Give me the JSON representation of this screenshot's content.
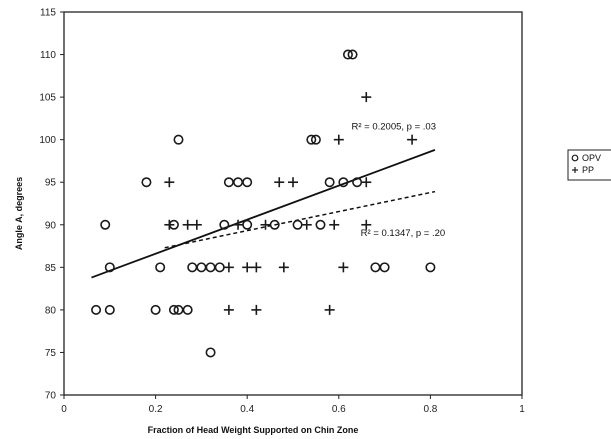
{
  "chart_data": {
    "type": "scatter",
    "title": "",
    "xlabel": "Fraction of Head Weight Supported on Chin Zone",
    "ylabel": "Angle A, degrees",
    "xlim": [
      0,
      1
    ],
    "ylim": [
      70,
      115
    ],
    "xticks": [
      "0",
      "0.2",
      "0.4",
      "0.6",
      "0.8",
      "1"
    ],
    "yticks": [
      "70",
      "75",
      "80",
      "85",
      "90",
      "95",
      "100",
      "105",
      "110",
      "115"
    ],
    "grid": false,
    "legend_position": "right",
    "series": [
      {
        "name": "OPV",
        "marker": "circle",
        "color": "#1a1a1a",
        "points": [
          [
            0.07,
            80
          ],
          [
            0.1,
            80
          ],
          [
            0.2,
            80
          ],
          [
            0.24,
            80
          ],
          [
            0.25,
            80
          ],
          [
            0.27,
            80
          ],
          [
            0.1,
            85
          ],
          [
            0.21,
            85
          ],
          [
            0.28,
            85
          ],
          [
            0.3,
            85
          ],
          [
            0.32,
            85
          ],
          [
            0.34,
            85
          ],
          [
            0.09,
            90
          ],
          [
            0.24,
            90
          ],
          [
            0.35,
            90
          ],
          [
            0.4,
            90
          ],
          [
            0.46,
            90
          ],
          [
            0.51,
            90
          ],
          [
            0.56,
            90
          ],
          [
            0.18,
            95
          ],
          [
            0.36,
            95
          ],
          [
            0.38,
            95
          ],
          [
            0.4,
            95
          ],
          [
            0.58,
            95
          ],
          [
            0.61,
            95
          ],
          [
            0.64,
            95
          ],
          [
            0.25,
            100
          ],
          [
            0.54,
            100
          ],
          [
            0.55,
            100
          ],
          [
            0.32,
            75
          ],
          [
            0.63,
            110
          ],
          [
            0.62,
            110
          ],
          [
            0.68,
            85
          ],
          [
            0.7,
            85
          ],
          [
            0.8,
            85
          ]
        ]
      },
      {
        "name": "PP",
        "marker": "plus",
        "color": "#1a1a1a",
        "points": [
          [
            0.36,
            80
          ],
          [
            0.42,
            80
          ],
          [
            0.58,
            80
          ],
          [
            0.36,
            85
          ],
          [
            0.4,
            85
          ],
          [
            0.42,
            85
          ],
          [
            0.48,
            85
          ],
          [
            0.61,
            85
          ],
          [
            0.23,
            90
          ],
          [
            0.27,
            90
          ],
          [
            0.29,
            90
          ],
          [
            0.38,
            90
          ],
          [
            0.44,
            90
          ],
          [
            0.53,
            90
          ],
          [
            0.59,
            90
          ],
          [
            0.66,
            90
          ],
          [
            0.23,
            95
          ],
          [
            0.47,
            95
          ],
          [
            0.5,
            95
          ],
          [
            0.66,
            95
          ],
          [
            0.6,
            100
          ],
          [
            0.76,
            100
          ],
          [
            0.66,
            105
          ]
        ]
      }
    ],
    "trendlines": [
      {
        "series": "OPV",
        "style": "solid",
        "x": [
          0.06,
          0.81
        ],
        "y": [
          83.8,
          98.8
        ]
      },
      {
        "series": "PP",
        "style": "dashed",
        "x": [
          0.22,
          0.81
        ],
        "y": [
          87.3,
          93.9
        ]
      }
    ],
    "annotations": [
      {
        "text": "R² = 0.2005, p = .03",
        "x": 0.72,
        "y": 101.2
      },
      {
        "text": "R² = 0.1347, p = .20",
        "x": 0.74,
        "y": 88.7
      }
    ]
  }
}
